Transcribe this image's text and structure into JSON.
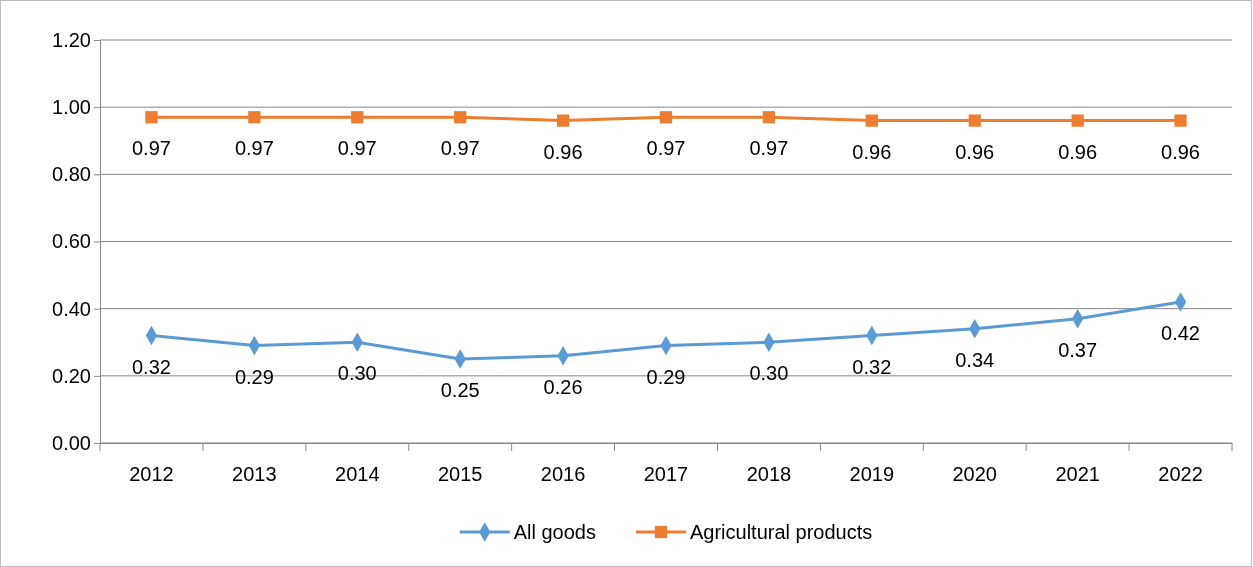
{
  "chart_data": {
    "type": "line",
    "categories": [
      "2012",
      "2013",
      "2014",
      "2015",
      "2016",
      "2017",
      "2018",
      "2019",
      "2020",
      "2021",
      "2022"
    ],
    "series": [
      {
        "name": "All goods",
        "color": "#5b9bd5",
        "marker": "diamond",
        "values": [
          0.32,
          0.29,
          0.3,
          0.25,
          0.26,
          0.29,
          0.3,
          0.32,
          0.34,
          0.37,
          0.42
        ],
        "value_labels": [
          "0.32",
          "0.29",
          "0.30",
          "0.25",
          "0.26",
          "0.29",
          "0.30",
          "0.32",
          "0.34",
          "0.37",
          "0.42"
        ]
      },
      {
        "name": "Agricultural products",
        "color": "#ed7d31",
        "marker": "square",
        "values": [
          0.97,
          0.97,
          0.97,
          0.97,
          0.96,
          0.97,
          0.97,
          0.96,
          0.96,
          0.96,
          0.96
        ],
        "value_labels": [
          "0.97",
          "0.97",
          "0.97",
          "0.97",
          "0.96",
          "0.97",
          "0.97",
          "0.96",
          "0.96",
          "0.96",
          "0.96"
        ]
      }
    ],
    "ylim": [
      0,
      1.2
    ],
    "yticks": [
      {
        "value": 0,
        "label": "0.00"
      },
      {
        "value": 0.2,
        "label": "0.20"
      },
      {
        "value": 0.4,
        "label": "0.40"
      },
      {
        "value": 0.6,
        "label": "0.60"
      },
      {
        "value": 0.8,
        "label": "0.80"
      },
      {
        "value": 1,
        "label": "1.00"
      },
      {
        "value": 1.2,
        "label": "1.20"
      }
    ],
    "grid": "y",
    "legend": "bottom",
    "line_style": "solid"
  }
}
